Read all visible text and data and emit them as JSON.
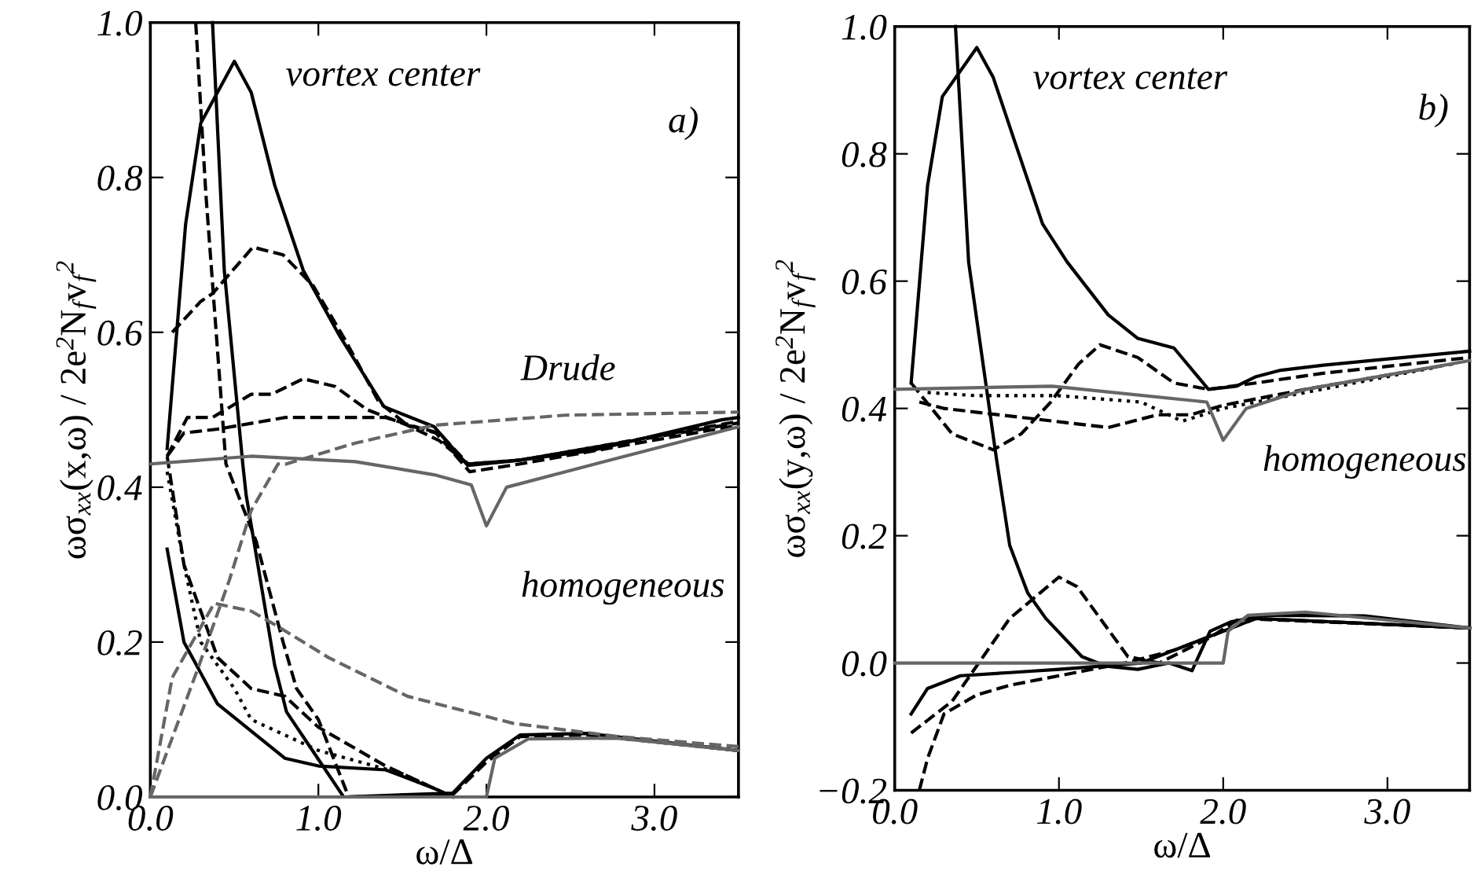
{
  "chart_data": [
    {
      "type": "line",
      "xlabel": "ω/Δ",
      "ylabel": "ωσ$_{xx}$(x,ω) / 2e$^{2}$N$_{f}$v$_{f}$$^{2}$",
      "xlim": [
        0,
        3.5
      ],
      "ylim": [
        0,
        1.0
      ],
      "xticks": [
        {
          "value": 0,
          "label": "0.0"
        },
        {
          "value": 1,
          "label": "1.0"
        },
        {
          "value": 2,
          "label": "2.0"
        },
        {
          "value": 3,
          "label": "3.0"
        }
      ],
      "yticks": [
        {
          "value": 0,
          "label": "0.0"
        },
        {
          "value": 0.2,
          "label": "0.2"
        },
        {
          "value": 0.4,
          "label": "0.4"
        },
        {
          "value": 0.6,
          "label": "0.6"
        },
        {
          "value": 0.8,
          "label": "0.8"
        },
        {
          "value": 1.0,
          "label": "1.0"
        }
      ],
      "grid": false,
      "annotations": [
        "vortex center",
        "a)",
        "Drude",
        "homogeneous"
      ],
      "series": [
        {
          "color": "#000000",
          "line_style": "solid",
          "x": [
            0.1,
            0.21,
            0.3,
            0.5,
            0.6,
            0.74,
            0.91,
            1.13,
            1.39,
            1.69,
            1.89,
            2.16,
            2.62,
            3.4,
            3.5
          ],
          "values": [
            0.45,
            0.74,
            0.87,
            0.95,
            0.91,
            0.79,
            0.68,
            0.594,
            0.504,
            0.478,
            0.428,
            0.434,
            0.447,
            0.487,
            0.49
          ]
        },
        {
          "color": "#000000",
          "line_style": "solid",
          "x": [
            0.37,
            0.44,
            0.55,
            0.57,
            0.74,
            0.81,
            0.94,
            1.15,
            1.8,
            2.0,
            2.2,
            2.6,
            3.5
          ],
          "values": [
            1.0,
            0.68,
            0.43,
            0.39,
            0.17,
            0.11,
            0.068,
            0.0,
            0.005,
            0.05,
            0.08,
            0.082,
            0.06
          ]
        },
        {
          "color": "#000000",
          "line_style": "dashed",
          "x": [
            0.13,
            0.3,
            0.37,
            0.61,
            0.79,
            0.97,
            1.16,
            1.36,
            1.53,
            1.72,
            1.89,
            2.2,
            2.6,
            3.5
          ],
          "values": [
            0.6,
            0.64,
            0.65,
            0.71,
            0.7,
            0.66,
            0.59,
            0.51,
            0.48,
            0.47,
            0.43,
            0.435,
            0.45,
            0.485
          ]
        },
        {
          "color": "#000000",
          "line_style": "dashed",
          "x": [
            0.27,
            0.33,
            0.45,
            0.63,
            0.79,
            0.87,
            1.0,
            1.18,
            1.8,
            2.0,
            2.2,
            2.6,
            3.5
          ],
          "values": [
            1.0,
            0.78,
            0.43,
            0.33,
            0.2,
            0.14,
            0.1,
            0.0,
            0.003,
            0.045,
            0.078,
            0.08,
            0.06
          ]
        },
        {
          "color": "#000000",
          "line_style": "dashed",
          "x": [
            0.1,
            0.22,
            0.37,
            0.6,
            0.72,
            0.91,
            1.1,
            1.29,
            1.53,
            1.72,
            1.89,
            2.2,
            2.6,
            3.5
          ],
          "values": [
            0.44,
            0.49,
            0.49,
            0.52,
            0.52,
            0.54,
            0.53,
            0.5,
            0.48,
            0.46,
            0.43,
            0.435,
            0.45,
            0.483
          ]
        },
        {
          "color": "#000000",
          "line_style": "dashed",
          "x": [
            0.1,
            0.2,
            0.4,
            0.8,
            1.4,
            1.7,
            1.9,
            2.2,
            3.5
          ],
          "values": [
            0.44,
            0.47,
            0.475,
            0.49,
            0.49,
            0.47,
            0.42,
            0.43,
            0.48
          ]
        },
        {
          "color": "#000000",
          "line_style": "solid",
          "x": [
            0.1,
            0.2,
            0.4,
            0.6,
            0.8,
            1.0,
            1.4,
            1.7,
            1.8
          ],
          "values": [
            0.32,
            0.2,
            0.12,
            0.085,
            0.05,
            0.04,
            0.035,
            0.01,
            0.0
          ]
        },
        {
          "color": "#000000",
          "line_style": "dotted",
          "x": [
            0.1,
            0.2,
            0.3,
            0.5,
            0.6,
            0.8,
            1.0,
            1.5,
            1.8
          ],
          "values": [
            0.42,
            0.3,
            0.2,
            0.14,
            0.1,
            0.08,
            0.06,
            0.03,
            0.0
          ]
        },
        {
          "color": "#000000",
          "line_style": "dashed",
          "x": [
            0.1,
            0.2,
            0.4,
            0.6,
            0.8,
            1.0,
            1.4,
            1.8
          ],
          "values": [
            0.44,
            0.3,
            0.18,
            0.14,
            0.13,
            0.09,
            0.04,
            0.0
          ]
        },
        {
          "color": "#666666",
          "line_style": "dashed",
          "x": [
            0,
            0.29,
            0.47,
            0.6,
            0.76,
            0.81,
            1.22,
            1.69,
            2.47,
            3.5
          ],
          "values": [
            0,
            0.17,
            0.28,
            0.37,
            0.43,
            0.43,
            0.457,
            0.48,
            0.493,
            0.497
          ]
        },
        {
          "color": "#666666",
          "line_style": "dashed",
          "x": [
            0,
            0.13,
            0.38,
            0.6,
            0.76,
            1.06,
            1.53,
            2.16,
            2.78,
            3.5
          ],
          "values": [
            0,
            0.154,
            0.25,
            0.24,
            0.22,
            0.18,
            0.13,
            0.095,
            0.078,
            0.065
          ]
        },
        {
          "color": "#666666",
          "line_style": "solid",
          "x": [
            0,
            0.6,
            1.22,
            1.69,
            1.91,
            2.0,
            2.12,
            2.47,
            3.5
          ],
          "values": [
            0.43,
            0.44,
            0.433,
            0.416,
            0.403,
            0.35,
            0.4,
            0.42,
            0.478
          ]
        },
        {
          "color": "#666666",
          "line_style": "solid",
          "x": [
            0,
            2.0,
            2.05,
            2.25,
            2.78,
            3.5
          ],
          "values": [
            0,
            0,
            0.05,
            0.075,
            0.076,
            0.06
          ]
        }
      ]
    },
    {
      "type": "line",
      "xlabel": "ω/Δ",
      "ylabel": "ωσ$_{xx}$(y,ω) / 2e$^{2}$N$_{f}$v$_{f}$$^{2}$",
      "xlim": [
        0,
        3.5
      ],
      "ylim": [
        -0.2,
        1.0
      ],
      "xticks": [
        {
          "value": 0,
          "label": "0.0"
        },
        {
          "value": 1,
          "label": "1.0"
        },
        {
          "value": 2,
          "label": "2.0"
        },
        {
          "value": 3,
          "label": "3.0"
        }
      ],
      "yticks": [
        {
          "value": -0.2,
          "label": "−0.2"
        },
        {
          "value": 0,
          "label": "0.0"
        },
        {
          "value": 0.2,
          "label": "0.2"
        },
        {
          "value": 0.4,
          "label": "0.4"
        },
        {
          "value": 0.6,
          "label": "0.6"
        },
        {
          "value": 0.8,
          "label": "0.8"
        },
        {
          "value": 1.0,
          "label": "1.0"
        }
      ],
      "grid": false,
      "annotations": [
        "vortex center",
        "b)",
        "homogeneous"
      ],
      "series": [
        {
          "color": "#000000",
          "line_style": "solid",
          "x": [
            0.1,
            0.2,
            0.29,
            0.5,
            0.6,
            0.73,
            0.9,
            1.05,
            1.3,
            1.48,
            1.7,
            1.91,
            2.08,
            2.2,
            2.35,
            2.61,
            3.5
          ],
          "values": [
            0.44,
            0.75,
            0.89,
            0.967,
            0.92,
            0.82,
            0.69,
            0.63,
            0.547,
            0.51,
            0.495,
            0.43,
            0.435,
            0.45,
            0.46,
            0.468,
            0.49
          ]
        },
        {
          "color": "#000000",
          "line_style": "solid",
          "x": [
            0.37,
            0.45,
            0.62,
            0.7,
            0.81,
            0.92,
            1.14,
            1.29,
            1.48,
            1.67,
            1.81,
            1.92,
            2.05,
            2.25,
            2.86,
            3.5
          ],
          "values": [
            1.0,
            0.63,
            0.32,
            0.185,
            0.11,
            0.07,
            0.01,
            -0.005,
            -0.01,
            0.0,
            -0.012,
            0.05,
            0.065,
            0.075,
            0.074,
            0.055
          ]
        },
        {
          "color": "#000000",
          "line_style": "dashed",
          "x": [
            0.1,
            0.35,
            0.6,
            0.77,
            0.95,
            1.12,
            1.25,
            1.48,
            1.7,
            1.91,
            2.2,
            2.6,
            3.5
          ],
          "values": [
            0.44,
            0.36,
            0.335,
            0.36,
            0.41,
            0.47,
            0.5,
            0.48,
            0.44,
            0.43,
            0.44,
            0.455,
            0.48
          ]
        },
        {
          "color": "#000000",
          "line_style": "dashed",
          "x": [
            0.1,
            0.35,
            0.7,
            1.0,
            1.11,
            1.42,
            1.61,
            1.92,
            2.1,
            3.5
          ],
          "values": [
            -0.11,
            -0.06,
            0.07,
            0.135,
            0.12,
            0.01,
            0.0,
            0.04,
            0.07,
            0.055
          ]
        },
        {
          "color": "#000000",
          "line_style": "dashed",
          "x": [
            0.15,
            0.2,
            0.3,
            0.5,
            0.7,
            1.0,
            1.4,
            1.7,
            1.9,
            2.2,
            3.5
          ],
          "values": [
            -0.2,
            -0.15,
            -0.08,
            -0.05,
            -0.035,
            -0.02,
            0.0,
            0.02,
            0.04,
            0.07,
            0.055
          ]
        },
        {
          "color": "#000000",
          "line_style": "solid",
          "x": [
            0.1,
            0.2,
            0.4,
            0.7,
            1.0,
            1.5,
            1.9,
            2.2,
            3.5
          ],
          "values": [
            -0.08,
            -0.04,
            -0.02,
            -0.015,
            -0.01,
            0.0,
            0.04,
            0.07,
            0.055
          ]
        },
        {
          "color": "#000000",
          "line_style": "dashed",
          "x": [
            0.15,
            0.3,
            0.8,
            1.3,
            1.6,
            1.8,
            2.0,
            2.5,
            3.4
          ],
          "values": [
            0.41,
            0.4,
            0.385,
            0.37,
            0.39,
            0.39,
            0.405,
            0.43,
            0.47
          ]
        },
        {
          "color": "#000000",
          "line_style": "dotted",
          "x": [
            0.2,
            0.5,
            1.0,
            1.5,
            1.75,
            2.0,
            2.5,
            3.3
          ],
          "values": [
            0.425,
            0.42,
            0.42,
            0.41,
            0.38,
            0.4,
            0.425,
            0.465
          ]
        },
        {
          "color": "#666666",
          "line_style": "solid",
          "x": [
            0,
            0.96,
            1.9,
            2.0,
            2.14,
            2.5,
            3.5
          ],
          "values": [
            0.43,
            0.435,
            0.41,
            0.35,
            0.4,
            0.43,
            0.475
          ]
        },
        {
          "color": "#666666",
          "line_style": "solid",
          "x": [
            0,
            2.0,
            2.03,
            2.15,
            2.5,
            3.5
          ],
          "values": [
            0,
            0,
            0.05,
            0.075,
            0.08,
            0.055
          ]
        }
      ]
    }
  ]
}
